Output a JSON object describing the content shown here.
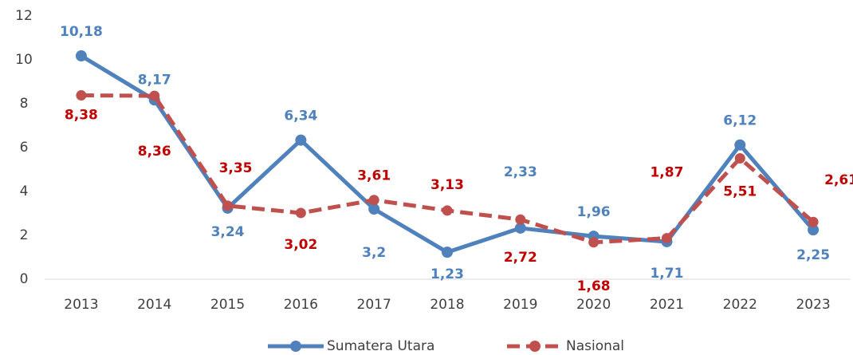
{
  "chart_data": {
    "type": "line",
    "categories": [
      "2013",
      "2014",
      "2015",
      "2016",
      "2017",
      "2018",
      "2019",
      "2020",
      "2021",
      "2022",
      "2023"
    ],
    "series": [
      {
        "name": "Sumatera Utara",
        "color": "#4f81bd",
        "values": [
          10.18,
          8.17,
          3.24,
          6.34,
          3.2,
          1.23,
          2.33,
          1.96,
          1.71,
          6.12,
          2.25
        ],
        "value_labels": [
          "10,18",
          "8,17",
          "3,24",
          "6,34",
          "3,2",
          "1,23",
          "2,33",
          "1,96",
          "1,71",
          "6,12",
          "2,25"
        ]
      },
      {
        "name": "Nasional",
        "color": "#c0504d",
        "values": [
          8.38,
          8.36,
          3.35,
          3.02,
          3.61,
          3.13,
          2.72,
          1.68,
          1.87,
          5.51,
          2.61
        ],
        "value_labels": [
          "8,38",
          "8,36",
          "3,35",
          "3,02",
          "3,61",
          "3,13",
          "2,72",
          "1,68",
          "1,87",
          "5,51",
          "2,61"
        ]
      }
    ],
    "ylim": [
      0,
      12
    ],
    "yticks": [
      0,
      2,
      4,
      6,
      8,
      10,
      12
    ],
    "grid": false,
    "legend": "bottom"
  }
}
